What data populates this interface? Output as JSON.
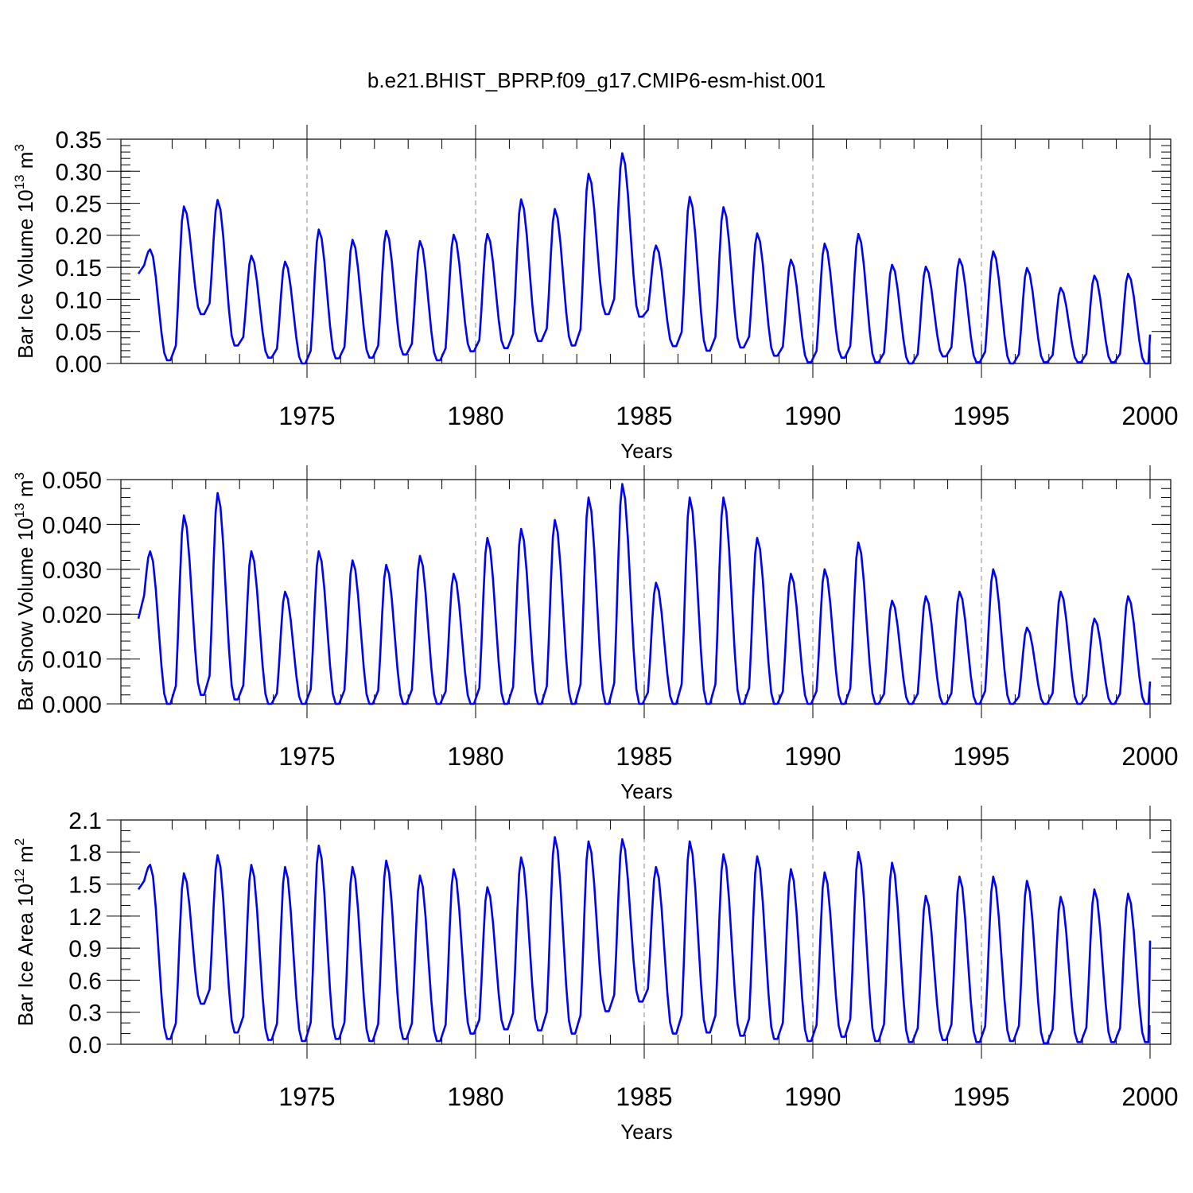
{
  "figure": {
    "title": "b.e21.BHIST_BPRP.f09_g17.CMIP6-esm-hist.001",
    "line_color": "#0000ff",
    "grid_color": "#888888"
  },
  "chart_data": [
    {
      "type": "line",
      "name": "ice-volume",
      "title": "",
      "xlabel": "Years",
      "ylabel": "Bar Ice Volume 10",
      "ylabel_exp1": "13",
      "ylabel_mid": " m",
      "ylabel_exp2": "3",
      "xlim": [
        1970,
        2000
      ],
      "ylim": [
        0,
        0.35
      ],
      "xticks": [
        1975,
        1980,
        1985,
        1990,
        1995,
        2000
      ],
      "xtick_labels": [
        "1975",
        "1980",
        "1985",
        "1990",
        "1995",
        "2000"
      ],
      "yticks": [
        0,
        0.05,
        0.1,
        0.15,
        0.2,
        0.25,
        0.3,
        0.35
      ],
      "ytick_labels": [
        "0.00",
        "0.05",
        "0.10",
        "0.15",
        "0.20",
        "0.25",
        "0.30",
        "0.35"
      ],
      "yminor_step": 0.01,
      "grid": "vertical dashed at major x ticks",
      "series": [
        {
          "name": "Bar Ice Volume",
          "annual_max": [
            0.178,
            0.245,
            0.255,
            0.168,
            0.159,
            0.209,
            0.193,
            0.207,
            0.191,
            0.201,
            0.202,
            0.256,
            0.241,
            0.296,
            0.328,
            0.184,
            0.26,
            0.244,
            0.203,
            0.162,
            0.187,
            0.202,
            0.154,
            0.151,
            0.163,
            0.175,
            0.149,
            0.118,
            0.137,
            0.14
          ],
          "annual_min": [
            0.005,
            0.077,
            0.028,
            0.009,
            0.0,
            0.008,
            0.009,
            0.014,
            0.005,
            0.019,
            0.024,
            0.035,
            0.028,
            0.077,
            0.073,
            0.027,
            0.02,
            0.025,
            0.012,
            0.002,
            0.009,
            0.002,
            0.0,
            0.011,
            0.002,
            0.0,
            0.002,
            0.002,
            0.002,
            0.0
          ],
          "start_value": 0.14,
          "end_value": 0.045
        }
      ]
    },
    {
      "type": "line",
      "name": "snow-volume",
      "title": "",
      "xlabel": "Years",
      "ylabel": "Bar Snow Volume 10",
      "ylabel_exp1": "13",
      "ylabel_mid": " m",
      "ylabel_exp2": "3",
      "xlim": [
        1970,
        2000
      ],
      "ylim": [
        0,
        0.05
      ],
      "xticks": [
        1975,
        1980,
        1985,
        1990,
        1995,
        2000
      ],
      "xtick_labels": [
        "1975",
        "1980",
        "1985",
        "1990",
        "1995",
        "2000"
      ],
      "yticks": [
        0,
        0.01,
        0.02,
        0.03,
        0.04,
        0.05
      ],
      "ytick_labels": [
        "0.000",
        "0.010",
        "0.020",
        "0.030",
        "0.040",
        "0.050"
      ],
      "yminor_step": 0.002,
      "grid": "vertical dashed at major x ticks",
      "series": [
        {
          "name": "Bar Snow Volume",
          "annual_max": [
            0.034,
            0.042,
            0.047,
            0.034,
            0.025,
            0.034,
            0.032,
            0.031,
            0.033,
            0.029,
            0.037,
            0.039,
            0.041,
            0.046,
            0.049,
            0.027,
            0.046,
            0.046,
            0.037,
            0.029,
            0.03,
            0.036,
            0.023,
            0.024,
            0.025,
            0.03,
            0.017,
            0.025,
            0.019,
            0.024
          ],
          "annual_min": [
            0.0,
            0.002,
            0.001,
            0.0,
            0.0,
            0.0,
            0.0,
            0.0,
            0.0,
            0.0,
            0.0,
            0.0,
            0.0,
            0.0,
            0.0,
            0.0,
            0.0,
            0.0,
            0.0,
            0.0,
            0.0,
            0.0,
            0.0,
            0.0,
            0.0,
            0.0,
            0.0,
            0.0,
            0.0,
            0.0
          ],
          "start_value": 0.019,
          "end_value": 0.005
        }
      ]
    },
    {
      "type": "line",
      "name": "ice-area",
      "title": "",
      "xlabel": "Years",
      "ylabel": "Bar Ice Area 10",
      "ylabel_exp1": "12",
      "ylabel_mid": " m",
      "ylabel_exp2": "2",
      "xlim": [
        1970,
        2000
      ],
      "ylim": [
        0,
        2.1
      ],
      "xticks": [
        1975,
        1980,
        1985,
        1990,
        1995,
        2000
      ],
      "xtick_labels": [
        "1975",
        "1980",
        "1985",
        "1990",
        "1995",
        "2000"
      ],
      "yticks": [
        0,
        0.3,
        0.6,
        0.9,
        1.2,
        1.5,
        1.8,
        2.1
      ],
      "ytick_labels": [
        "0.0",
        "0.3",
        "0.6",
        "0.9",
        "1.2",
        "1.5",
        "1.8",
        "2.1"
      ],
      "yminor_step": 0.1,
      "grid": "vertical dashed at major x ticks",
      "series": [
        {
          "name": "Bar Ice Area",
          "annual_max": [
            1.68,
            1.6,
            1.77,
            1.68,
            1.66,
            1.86,
            1.66,
            1.72,
            1.58,
            1.64,
            1.47,
            1.75,
            1.94,
            1.9,
            1.92,
            1.66,
            1.9,
            1.78,
            1.76,
            1.64,
            1.61,
            1.8,
            1.7,
            1.39,
            1.57,
            1.57,
            1.53,
            1.38,
            1.45,
            1.41
          ],
          "annual_min": [
            0.05,
            0.38,
            0.11,
            0.04,
            0.03,
            0.05,
            0.03,
            0.05,
            0.03,
            0.1,
            0.14,
            0.13,
            0.1,
            0.31,
            0.4,
            0.1,
            0.11,
            0.08,
            0.05,
            0.03,
            0.07,
            0.03,
            0.02,
            0.04,
            0.02,
            0.03,
            0.01,
            0.02,
            0.02,
            0.02
          ],
          "start_value": 1.45,
          "end_value": 0.97
        }
      ]
    }
  ]
}
